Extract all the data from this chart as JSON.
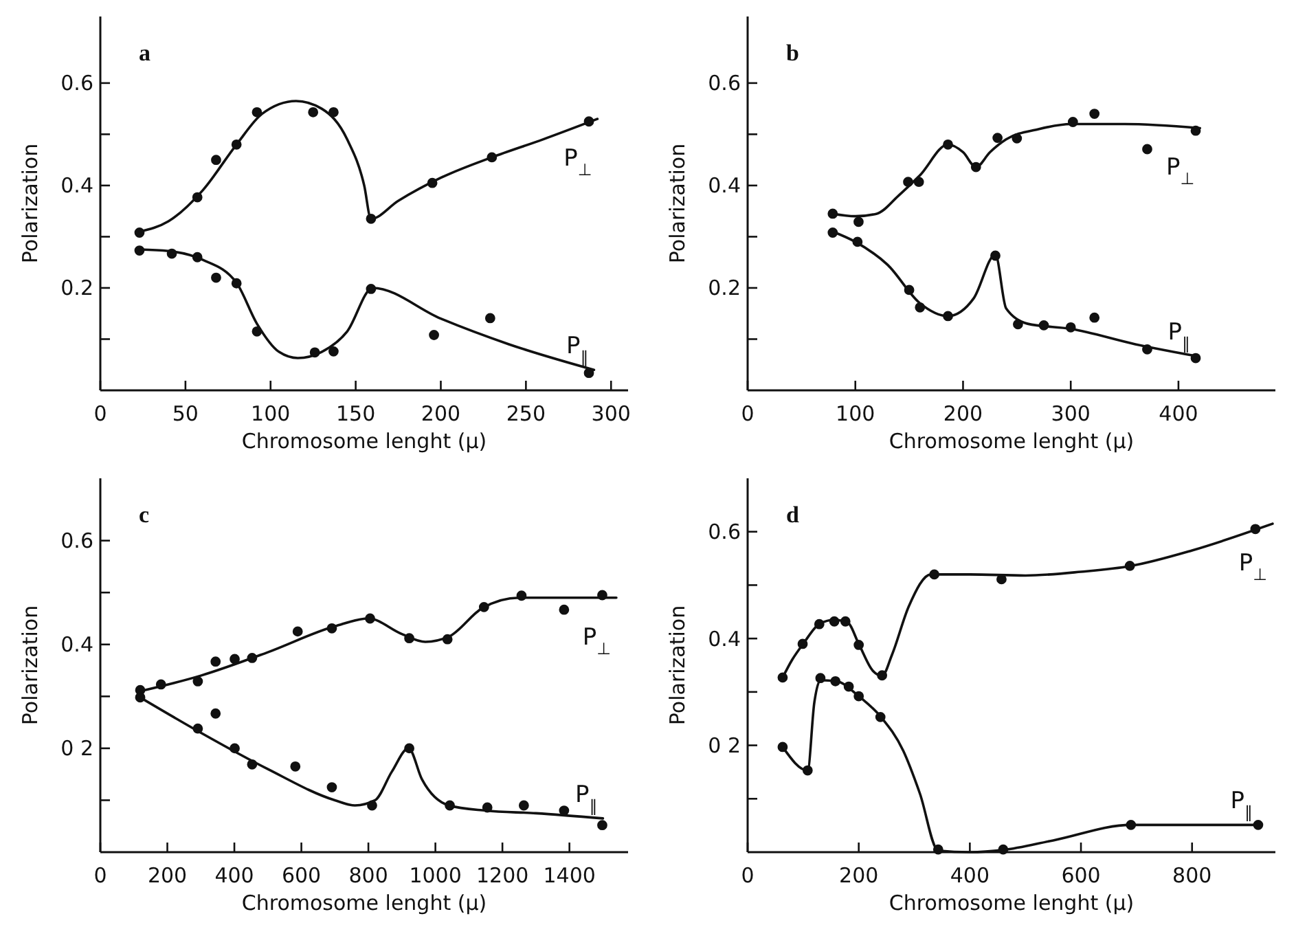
{
  "chart_data": [
    {
      "type": "scatter",
      "xlabel": "Chromosome lenght (μ)",
      "ylabel": "Polarization",
      "annotations": [
        "a"
      ],
      "xlim": [
        0,
        310
      ],
      "ylim": [
        0,
        0.73
      ],
      "xticks": [
        0,
        50,
        100,
        150,
        200,
        250,
        300
      ],
      "yticks": [
        {
          "value": 0.1,
          "label": null
        },
        0.2,
        {
          "value": 0.3,
          "label": null
        },
        0.4,
        {
          "value": 0.5,
          "label": null
        },
        0.6
      ],
      "grid": false,
      "marker": "circle",
      "series": [
        {
          "color": "#111111",
          "x": [
            23,
            57,
            68,
            80,
            92,
            125,
            137,
            159,
            195,
            230,
            287
          ],
          "values": [
            0.308,
            0.377,
            0.45,
            0.48,
            0.543,
            0.543,
            0.543,
            0.335,
            0.405,
            0.455,
            0.525
          ]
        },
        {
          "color": "#111111",
          "x": [
            23,
            42,
            57,
            68,
            80,
            92,
            126,
            137,
            159,
            196,
            229,
            287
          ],
          "values": [
            0.273,
            0.267,
            0.26,
            0.22,
            0.209,
            0.115,
            0.074,
            0.076,
            0.198,
            0.108,
            0.141,
            0.034
          ]
        },
        {
          "type": "line",
          "name": "P$_{⊥}$",
          "color": "#111111",
          "line_style": "solid",
          "marker": "none",
          "x": [
            23,
            40,
            60,
            80,
            95,
            115,
            130,
            145,
            155,
            159,
            175,
            200,
            230,
            260,
            292
          ],
          "values": [
            0.31,
            0.33,
            0.39,
            0.48,
            0.54,
            0.565,
            0.55,
            0.49,
            0.4,
            0.335,
            0.37,
            0.415,
            0.455,
            0.49,
            0.53
          ]
        },
        {
          "type": "line",
          "name": "P$_{∥}$",
          "color": "#111111",
          "line_style": "solid",
          "marker": "none",
          "x": [
            23,
            40,
            60,
            80,
            92,
            105,
            116,
            130,
            145,
            160,
            200,
            240,
            290
          ],
          "values": [
            0.275,
            0.272,
            0.255,
            0.21,
            0.13,
            0.075,
            0.063,
            0.075,
            0.115,
            0.2,
            0.14,
            0.09,
            0.04
          ]
        }
      ]
    },
    {
      "type": "scatter",
      "xlabel": "Chromosome lenght (μ)",
      "ylabel": "Polarization",
      "annotations": [
        "b"
      ],
      "xlim": [
        0,
        490
      ],
      "ylim": [
        0,
        0.73
      ],
      "xticks": [
        0,
        100,
        200,
        300,
        400
      ],
      "yticks": [
        {
          "value": 0.1,
          "label": null
        },
        0.2,
        {
          "value": 0.3,
          "label": null
        },
        0.4,
        {
          "value": 0.5,
          "label": null
        },
        0.6
      ],
      "grid": false,
      "marker": "circle",
      "series": [
        {
          "color": "#111111",
          "x": [
            79,
            103,
            149,
            159,
            186,
            212,
            232,
            250,
            302,
            322,
            371,
            416
          ],
          "values": [
            0.345,
            0.329,
            0.407,
            0.407,
            0.48,
            0.436,
            0.493,
            0.492,
            0.524,
            0.54,
            0.471,
            0.507
          ]
        },
        {
          "color": "#111111",
          "x": [
            79,
            102,
            150,
            160,
            186,
            230,
            251,
            275,
            300,
            322,
            371,
            416
          ],
          "values": [
            0.308,
            0.29,
            0.196,
            0.162,
            0.145,
            0.263,
            0.129,
            0.127,
            0.123,
            0.142,
            0.08,
            0.063
          ]
        },
        {
          "type": "line",
          "name": "P$_{⊥}$",
          "color": "#111111",
          "line_style": "solid",
          "marker": "none",
          "x": [
            79,
            100,
            120,
            140,
            160,
            186,
            200,
            212,
            225,
            240,
            270,
            300,
            350,
            420
          ],
          "values": [
            0.345,
            0.34,
            0.345,
            0.38,
            0.42,
            0.48,
            0.465,
            0.436,
            0.465,
            0.49,
            0.51,
            0.52,
            0.52,
            0.512
          ]
        },
        {
          "type": "line",
          "name": "P$_{∥}$",
          "color": "#111111",
          "line_style": "solid",
          "marker": "none",
          "x": [
            79,
            100,
            130,
            160,
            186,
            210,
            230,
            240,
            260,
            300,
            360,
            416
          ],
          "values": [
            0.31,
            0.29,
            0.245,
            0.17,
            0.145,
            0.18,
            0.265,
            0.16,
            0.13,
            0.12,
            0.09,
            0.067
          ]
        }
      ]
    },
    {
      "type": "scatter",
      "xlabel": "Chromosome lenght (μ)",
      "ylabel": "Polarization",
      "annotations": [
        "c"
      ],
      "xlim": [
        0,
        1575
      ],
      "ylim": [
        0,
        0.72
      ],
      "xticks": [
        0,
        200,
        400,
        600,
        800,
        1000,
        1200,
        1400
      ],
      "yticks": [
        {
          "value": 0.1,
          "label": null
        },
        {
          "value": 0.2,
          "label": "0 2"
        },
        {
          "value": 0.3,
          "label": null
        },
        0.4,
        {
          "value": 0.5,
          "label": null
        },
        0.6
      ],
      "grid": false,
      "marker": "circle",
      "series": [
        {
          "color": "#111111",
          "x": [
            119,
            181,
            291,
            344,
            401,
            453,
            589,
            691,
            805,
            922,
            1036,
            1145,
            1257,
            1384,
            1498
          ],
          "values": [
            0.312,
            0.323,
            0.329,
            0.367,
            0.372,
            0.374,
            0.425,
            0.431,
            0.45,
            0.412,
            0.41,
            0.472,
            0.494,
            0.467,
            0.495
          ]
        },
        {
          "color": "#111111",
          "x": [
            119,
            291,
            344,
            401,
            453,
            582,
            691,
            811,
            922,
            1043,
            1155,
            1264,
            1384,
            1498
          ],
          "values": [
            0.298,
            0.238,
            0.267,
            0.2,
            0.169,
            0.165,
            0.125,
            0.09,
            0.2,
            0.09,
            0.086,
            0.09,
            0.08,
            0.052
          ]
        },
        {
          "type": "line",
          "name": "P$_{⊥}$",
          "color": "#111111",
          "line_style": "solid",
          "marker": "none",
          "x": [
            119,
            300,
            500,
            700,
            800,
            900,
            970,
            1040,
            1140,
            1250,
            1540
          ],
          "values": [
            0.31,
            0.34,
            0.385,
            0.435,
            0.45,
            0.42,
            0.405,
            0.415,
            0.47,
            0.49,
            0.49
          ]
        },
        {
          "type": "line",
          "name": "P$_{∥}$",
          "color": "#111111",
          "line_style": "solid",
          "marker": "none",
          "x": [
            119,
            300,
            500,
            700,
            760,
            820,
            870,
            920,
            960,
            1040,
            1150,
            1300,
            1500
          ],
          "values": [
            0.298,
            0.23,
            0.16,
            0.1,
            0.09,
            0.1,
            0.155,
            0.2,
            0.14,
            0.09,
            0.08,
            0.075,
            0.065
          ]
        }
      ]
    },
    {
      "type": "scatter",
      "xlabel": "Chromosome lenght (μ)",
      "ylabel": "Polarization",
      "annotations": [
        "d"
      ],
      "xlim": [
        0,
        950
      ],
      "ylim": [
        0,
        0.7
      ],
      "xticks": [
        0,
        200,
        400,
        600,
        800
      ],
      "yticks": [
        {
          "value": 0.1,
          "label": null
        },
        {
          "value": 0.2,
          "label": "0 2"
        },
        {
          "value": 0.3,
          "label": null
        },
        0.4,
        {
          "value": 0.5,
          "label": null
        },
        0.6
      ],
      "grid": false,
      "marker": "circle",
      "series": [
        {
          "color": "#111111",
          "x": [
            63,
            99,
            129,
            156,
            176,
            200,
            242,
            336,
            457,
            688,
            914
          ],
          "values": [
            0.327,
            0.39,
            0.427,
            0.432,
            0.432,
            0.388,
            0.331,
            0.52,
            0.511,
            0.536,
            0.605
          ]
        },
        {
          "color": "#111111",
          "x": [
            63,
            108,
            131,
            158,
            182,
            200,
            239,
            343,
            460,
            690,
            919
          ],
          "values": [
            0.197,
            0.153,
            0.326,
            0.32,
            0.31,
            0.292,
            0.253,
            0.005,
            0.005,
            0.051,
            0.051
          ]
        },
        {
          "type": "line",
          "name": "P$_{⊥}$",
          "color": "#111111",
          "line_style": "solid",
          "marker": "none",
          "x": [
            63,
            80,
            100,
            130,
            156,
            180,
            200,
            225,
            242,
            260,
            290,
            330,
            400,
            500,
            600,
            690,
            800,
            945
          ],
          "values": [
            0.327,
            0.36,
            0.39,
            0.428,
            0.435,
            0.43,
            0.39,
            0.34,
            0.33,
            0.37,
            0.46,
            0.52,
            0.52,
            0.518,
            0.525,
            0.536,
            0.565,
            0.615
          ]
        },
        {
          "type": "line",
          "name": "P$_{∥}$",
          "color": "#111111",
          "line_style": "solid",
          "marker": "none",
          "x": [
            63,
            108,
            120,
            131,
            160,
            200,
            240,
            280,
            310,
            343,
            400,
            460,
            550,
            690,
            919
          ],
          "values": [
            0.197,
            0.153,
            0.28,
            0.322,
            0.32,
            0.292,
            0.253,
            0.19,
            0.11,
            0.003,
            0.0,
            0.004,
            0.022,
            0.051,
            0.051
          ]
        }
      ]
    }
  ]
}
